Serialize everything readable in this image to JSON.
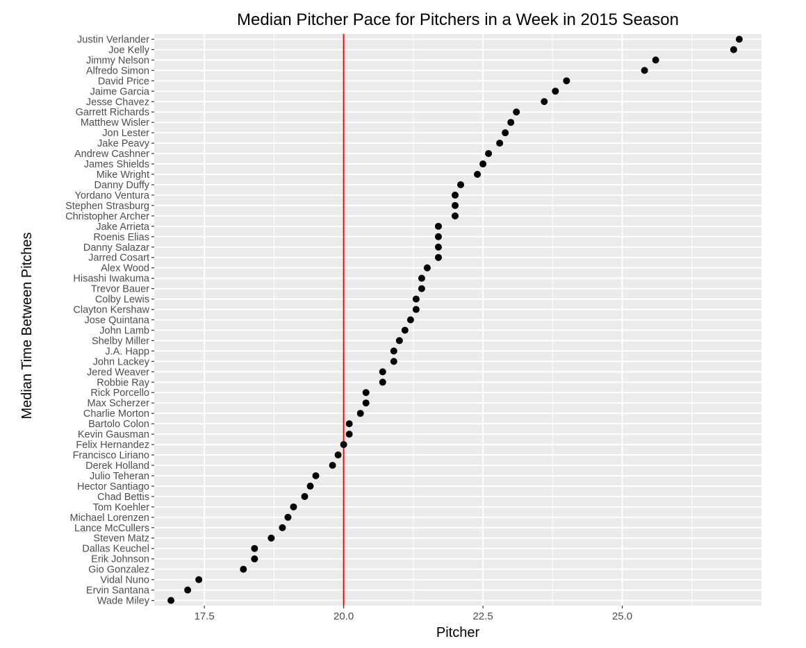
{
  "chart_data": {
    "type": "scatter",
    "title": "Median Pitcher Pace for Pitchers in a Week in 2015 Season",
    "xlabel": "Pitcher",
    "ylabel": "Median Time Between Pitches",
    "xlim": [
      16.6,
      27.5
    ],
    "x_ticks": [
      17.5,
      20.0,
      22.5,
      25.0
    ],
    "x_tick_labels": [
      "17.5",
      "20.0",
      "22.5",
      "25.0"
    ],
    "reference_line": {
      "x": 20.0,
      "color": "#ff0000"
    },
    "grid": true,
    "panel_color": "#ebebeb",
    "point_color": "#000000",
    "legend": "none",
    "points": [
      {
        "pitcher": "Justin Verlander",
        "value": 27.1
      },
      {
        "pitcher": "Joe Kelly",
        "value": 27.0
      },
      {
        "pitcher": "Jimmy Nelson",
        "value": 25.6
      },
      {
        "pitcher": "Alfredo Simon",
        "value": 25.4
      },
      {
        "pitcher": "David Price",
        "value": 24.0
      },
      {
        "pitcher": "Jaime Garcia",
        "value": 23.8
      },
      {
        "pitcher": "Jesse Chavez",
        "value": 23.6
      },
      {
        "pitcher": "Garrett Richards",
        "value": 23.1
      },
      {
        "pitcher": "Matthew Wisler",
        "value": 23.0
      },
      {
        "pitcher": "Jon Lester",
        "value": 22.9
      },
      {
        "pitcher": "Jake Peavy",
        "value": 22.8
      },
      {
        "pitcher": "Andrew Cashner",
        "value": 22.6
      },
      {
        "pitcher": "James Shields",
        "value": 22.5
      },
      {
        "pitcher": "Mike Wright",
        "value": 22.4
      },
      {
        "pitcher": "Danny Duffy",
        "value": 22.1
      },
      {
        "pitcher": "Yordano Ventura",
        "value": 22.0
      },
      {
        "pitcher": "Stephen Strasburg",
        "value": 22.0
      },
      {
        "pitcher": "Christopher Archer",
        "value": 22.0
      },
      {
        "pitcher": "Jake Arrieta",
        "value": 21.7
      },
      {
        "pitcher": "Roenis Elias",
        "value": 21.7
      },
      {
        "pitcher": "Danny Salazar",
        "value": 21.7
      },
      {
        "pitcher": "Jarred Cosart",
        "value": 21.7
      },
      {
        "pitcher": "Alex Wood",
        "value": 21.5
      },
      {
        "pitcher": "Hisashi Iwakuma",
        "value": 21.4
      },
      {
        "pitcher": "Trevor Bauer",
        "value": 21.4
      },
      {
        "pitcher": "Colby Lewis",
        "value": 21.3
      },
      {
        "pitcher": "Clayton Kershaw",
        "value": 21.3
      },
      {
        "pitcher": "Jose Quintana",
        "value": 21.2
      },
      {
        "pitcher": "John Lamb",
        "value": 21.1
      },
      {
        "pitcher": "Shelby Miller",
        "value": 21.0
      },
      {
        "pitcher": "J.A. Happ",
        "value": 20.9
      },
      {
        "pitcher": "John Lackey",
        "value": 20.9
      },
      {
        "pitcher": "Jered Weaver",
        "value": 20.7
      },
      {
        "pitcher": "Robbie Ray",
        "value": 20.7
      },
      {
        "pitcher": "Rick Porcello",
        "value": 20.4
      },
      {
        "pitcher": "Max Scherzer",
        "value": 20.4
      },
      {
        "pitcher": "Charlie Morton",
        "value": 20.3
      },
      {
        "pitcher": "Bartolo Colon",
        "value": 20.1
      },
      {
        "pitcher": "Kevin Gausman",
        "value": 20.1
      },
      {
        "pitcher": "Felix Hernandez",
        "value": 20.0
      },
      {
        "pitcher": "Francisco Liriano",
        "value": 19.9
      },
      {
        "pitcher": "Derek Holland",
        "value": 19.8
      },
      {
        "pitcher": "Julio Teheran",
        "value": 19.5
      },
      {
        "pitcher": "Hector Santiago",
        "value": 19.4
      },
      {
        "pitcher": "Chad Bettis",
        "value": 19.3
      },
      {
        "pitcher": "Tom Koehler",
        "value": 19.1
      },
      {
        "pitcher": "Michael Lorenzen",
        "value": 19.0
      },
      {
        "pitcher": "Lance McCullers",
        "value": 18.9
      },
      {
        "pitcher": "Steven Matz",
        "value": 18.7
      },
      {
        "pitcher": "Dallas Keuchel",
        "value": 18.4
      },
      {
        "pitcher": "Erik Johnson",
        "value": 18.4
      },
      {
        "pitcher": "Gio Gonzalez",
        "value": 18.2
      },
      {
        "pitcher": "Vidal Nuno",
        "value": 17.4
      },
      {
        "pitcher": "Ervin Santana",
        "value": 17.2
      },
      {
        "pitcher": "Wade Miley",
        "value": 16.9
      }
    ]
  }
}
